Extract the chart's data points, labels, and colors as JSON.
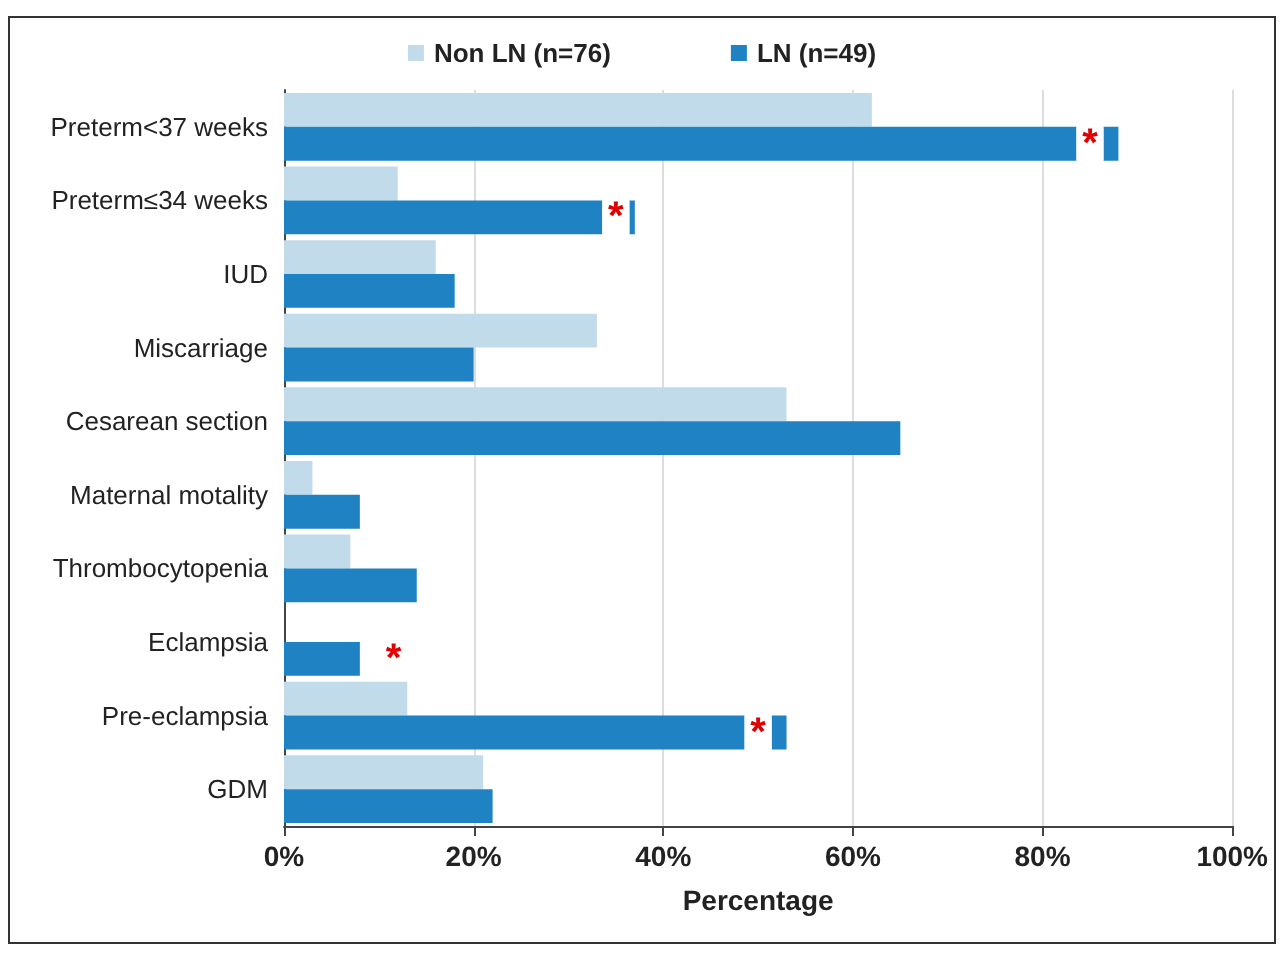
{
  "chart_data": {
    "type": "bar",
    "orientation": "horizontal",
    "xlabel": "Percentage",
    "categories": [
      "Preterm<37 weeks",
      "Preterm≤34 weeks",
      "IUD",
      "Miscarriage",
      "Cesarean section",
      "Maternal motality",
      "Thrombocytopenia",
      "Eclampsia",
      "Pre-eclampsia",
      "GDM"
    ],
    "series": [
      {
        "name": "Non LN (n=76)",
        "color": "#c2dbeb",
        "values": [
          62,
          12,
          16,
          33,
          53,
          3,
          7,
          0,
          13,
          21
        ]
      },
      {
        "name": "LN (n=49)",
        "color": "#1f82c2",
        "values": [
          88,
          37,
          18,
          20,
          65,
          8,
          14,
          8,
          53,
          22
        ]
      }
    ],
    "xlim": [
      0,
      100
    ],
    "xticks": [
      {
        "value": 0,
        "label": "0%"
      },
      {
        "value": 20,
        "label": "20%"
      },
      {
        "value": 40,
        "label": "40%"
      },
      {
        "value": 60,
        "label": "60%"
      },
      {
        "value": 80,
        "label": "80%"
      },
      {
        "value": 100,
        "label": "100%"
      }
    ],
    "annotations": [
      {
        "text": "*",
        "x": 85,
        "y": "Preterm<37 weeks"
      },
      {
        "text": "*",
        "x": 35,
        "y": "Preterm≤34 weeks"
      },
      {
        "text": "*",
        "x": 8,
        "y": "Eclampsia"
      },
      {
        "text": "*",
        "x": 50,
        "y": "Pre-eclampsia"
      }
    ],
    "grid": "x",
    "legend": "top"
  }
}
